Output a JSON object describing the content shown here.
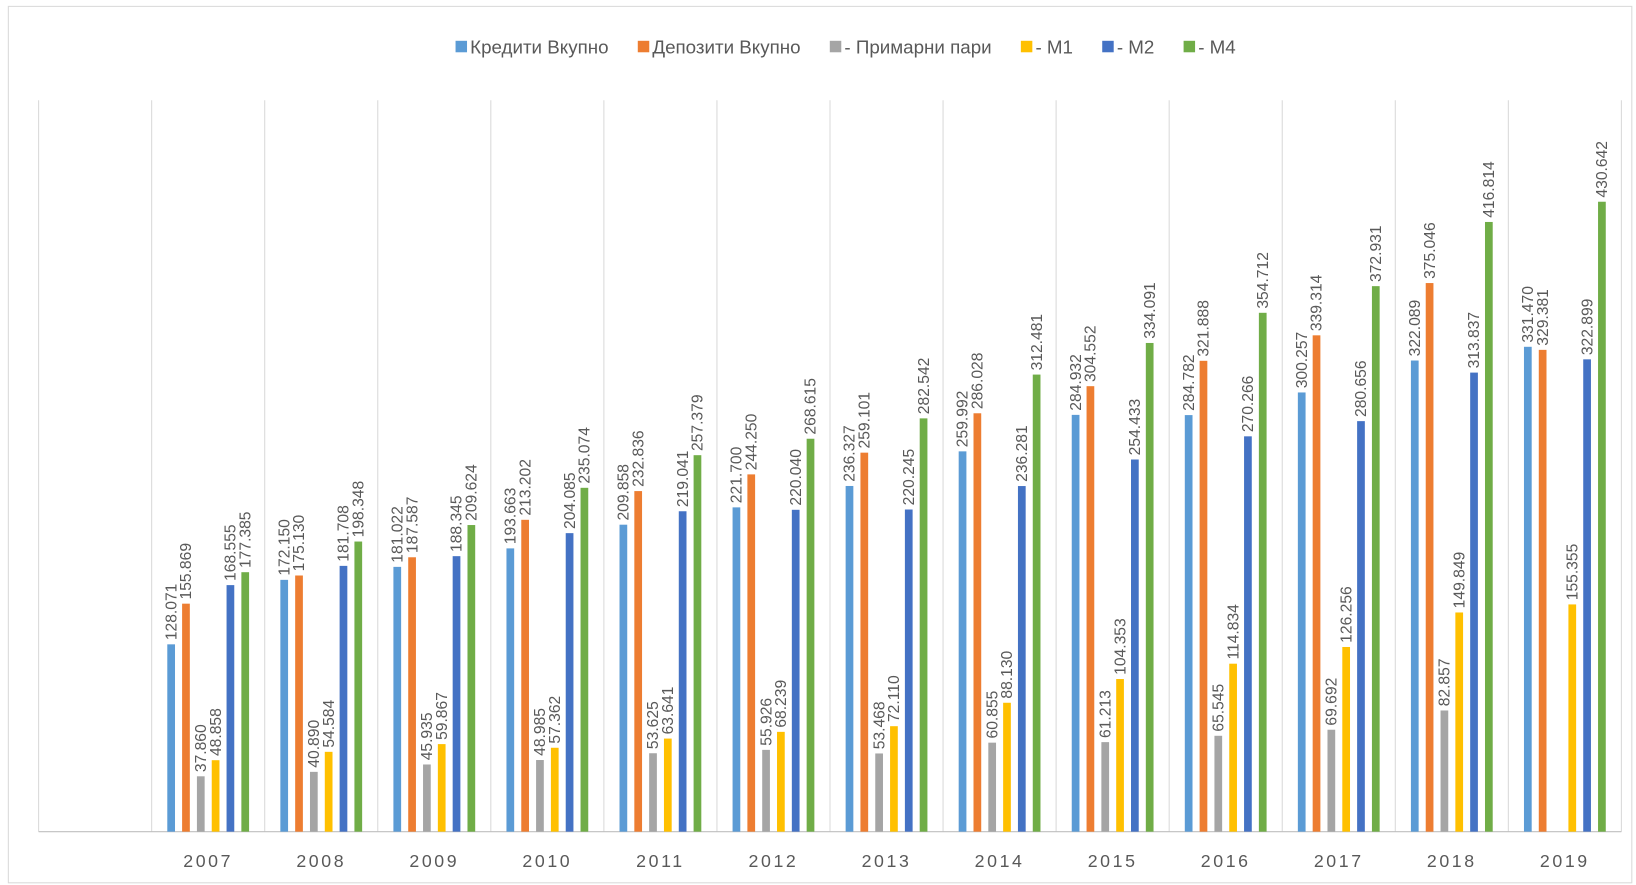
{
  "chart_data": {
    "type": "bar",
    "categories": [
      null,
      "2007",
      "2008",
      "2009",
      "2010",
      "2011",
      "2012",
      "2013",
      "2014",
      "2015",
      "2016",
      "2017",
      "2018",
      "2019"
    ],
    "ylim": [
      0,
      500
    ],
    "grid": true,
    "legend": "top",
    "series": [
      {
        "name": "Кредити Вкупно",
        "color": "#5b9bd5",
        "values": [
          null,
          128.071,
          172.15,
          181.022,
          193.663,
          209.858,
          221.7,
          236.327,
          259.992,
          284.932,
          284.782,
          300.257,
          322.089,
          331.47
        ],
        "value_labels": [
          null,
          "128.071",
          "172.150",
          "181.022",
          "193.663",
          "209.858",
          "221.700",
          "236.327",
          "259.992",
          "284.932",
          "284.782",
          "300.257",
          "322.089",
          "331.470"
        ]
      },
      {
        "name": "Депозити Вкупно",
        "color": "#ed7d31",
        "values": [
          null,
          155.869,
          175.13,
          187.587,
          213.202,
          232.836,
          244.25,
          259.101,
          286.028,
          304.552,
          321.888,
          339.314,
          375.046,
          329.381
        ],
        "value_labels": [
          null,
          "155.869",
          "175.130",
          "187.587",
          "213.202",
          "232.836",
          "244.250",
          "259.101",
          "286.028",
          "304.552",
          "321.888",
          "339.314",
          "375.046",
          "329.381"
        ]
      },
      {
        "name": "- Примарни пари",
        "color": "#a5a5a5",
        "values": [
          null,
          37.86,
          40.89,
          45.935,
          48.985,
          53.625,
          55.926,
          53.468,
          60.855,
          61.213,
          65.545,
          69.692,
          82.857,
          null
        ],
        "value_labels": [
          null,
          "37.860",
          "40.890",
          "45.935",
          "48.985",
          "53.625",
          "55.926",
          "53.468",
          "60.855",
          "61.213",
          "65.545",
          "69.692",
          "82.857",
          null
        ]
      },
      {
        "name": "- M1",
        "color": "#ffc000",
        "values": [
          null,
          48.858,
          54.584,
          59.867,
          57.362,
          63.641,
          68.239,
          72.11,
          88.13,
          104.353,
          114.834,
          126.256,
          149.849,
          155.355
        ],
        "value_labels": [
          null,
          "48.858",
          "54.584",
          "59.867",
          "57.362",
          "63.641",
          "68.239",
          "72.110",
          "88.130",
          "104.353",
          "114.834",
          "126.256",
          "149.849",
          "155.355"
        ]
      },
      {
        "name": "- M2",
        "color": "#4472c4",
        "values": [
          null,
          168.555,
          181.708,
          188.345,
          204.085,
          219.041,
          220.04,
          220.245,
          236.281,
          254.433,
          270.266,
          280.656,
          313.837,
          322.899
        ],
        "value_labels": [
          null,
          "168.555",
          "181.708",
          "188.345",
          "204.085",
          "219.041",
          "220.040",
          "220.245",
          "236.281",
          "254.433",
          "270.266",
          "280.656",
          "313.837",
          "322.899"
        ]
      },
      {
        "name": "- M4",
        "color": "#70ad47",
        "values": [
          null,
          177.385,
          198.348,
          209.624,
          235.074,
          257.379,
          268.615,
          282.542,
          312.481,
          334.091,
          354.712,
          372.931,
          416.814,
          430.642
        ],
        "value_labels": [
          null,
          "177.385",
          "198.348",
          "209.624",
          "235.074",
          "257.379",
          "268.615",
          "282.542",
          "312.481",
          "334.091",
          "354.712",
          "372.931",
          "416.814",
          "430.642"
        ]
      }
    ]
  }
}
